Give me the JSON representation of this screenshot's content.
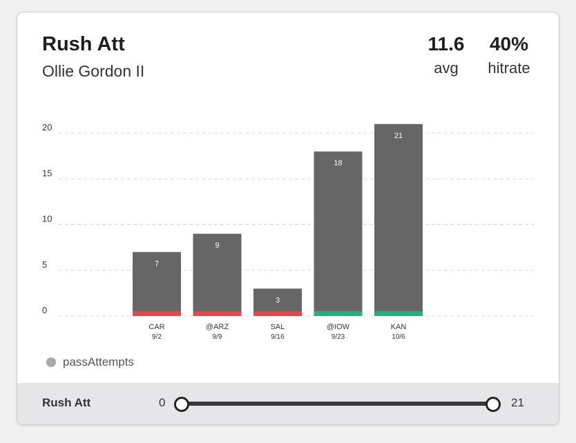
{
  "card": {
    "title": "Rush Att",
    "player": "Ollie Gordon II",
    "stats": {
      "avg_value": "11.6",
      "avg_label": "avg",
      "hitrate_value": "40%",
      "hitrate_label": "hitrate"
    }
  },
  "chart_data": {
    "type": "bar",
    "categories": [
      "CAR",
      "@ARZ",
      "SAL",
      "@IOW",
      "KAN"
    ],
    "dates": [
      "9/2",
      "9/9",
      "9/16",
      "9/23",
      "10/6"
    ],
    "values": [
      7,
      9,
      3,
      18,
      21
    ],
    "hit": [
      false,
      false,
      false,
      true,
      true
    ],
    "ylim": [
      0,
      21
    ],
    "yticks": [
      0,
      5,
      10,
      15,
      20
    ],
    "grid": true,
    "legend": [
      "passAttempts"
    ],
    "legend_position": "bottom-left"
  },
  "colors": {
    "bar": "#666666",
    "miss": "#e54848",
    "hit": "#22b07d",
    "legend_dot": "#aaaaaa",
    "grid": "#d8d8d8"
  },
  "footer": {
    "label": "Rush Att",
    "min": "0",
    "max": "21",
    "range_low": 0,
    "range_high": 21
  }
}
